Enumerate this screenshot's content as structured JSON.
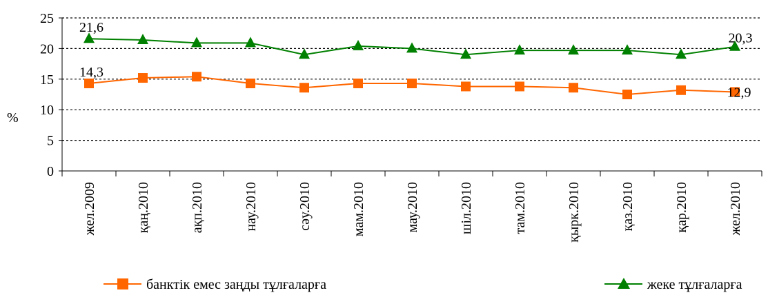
{
  "chart_data": {
    "type": "line",
    "ylabel": "%",
    "ylim": [
      0,
      25
    ],
    "yticks": [
      0,
      5,
      10,
      15,
      20,
      25
    ],
    "grid": "dotted horizontal",
    "legend_position": "bottom",
    "categories": [
      "жел.2009",
      "қаң.2010",
      "ақп.2010",
      "нау.2010",
      "сәу.2010",
      "мам.2010",
      "мау.2010",
      "шіл.2010",
      "там.2010",
      "қырк.2010",
      "қаз.2010",
      "қар.2010",
      "жел.2010"
    ],
    "series": [
      {
        "name": "банктік емес заңды тұлғаларға",
        "color": "#FF6600",
        "marker": "square",
        "values": [
          14.3,
          15.2,
          15.4,
          14.3,
          13.6,
          14.3,
          14.3,
          13.8,
          13.8,
          13.6,
          12.5,
          13.2,
          12.9
        ]
      },
      {
        "name": "жеке тұлғаларға",
        "color": "#008000",
        "marker": "triangle",
        "values": [
          21.6,
          21.4,
          20.9,
          20.9,
          19.0,
          20.4,
          20.0,
          19.0,
          19.7,
          19.7,
          19.7,
          19.0,
          20.3
        ]
      }
    ],
    "annotations": [
      {
        "series": 0,
        "index": 0,
        "text": "14,3"
      },
      {
        "series": 0,
        "index": 12,
        "text": "12,9"
      },
      {
        "series": 1,
        "index": 0,
        "text": "21,6"
      },
      {
        "series": 1,
        "index": 12,
        "text": "20,3"
      }
    ]
  }
}
